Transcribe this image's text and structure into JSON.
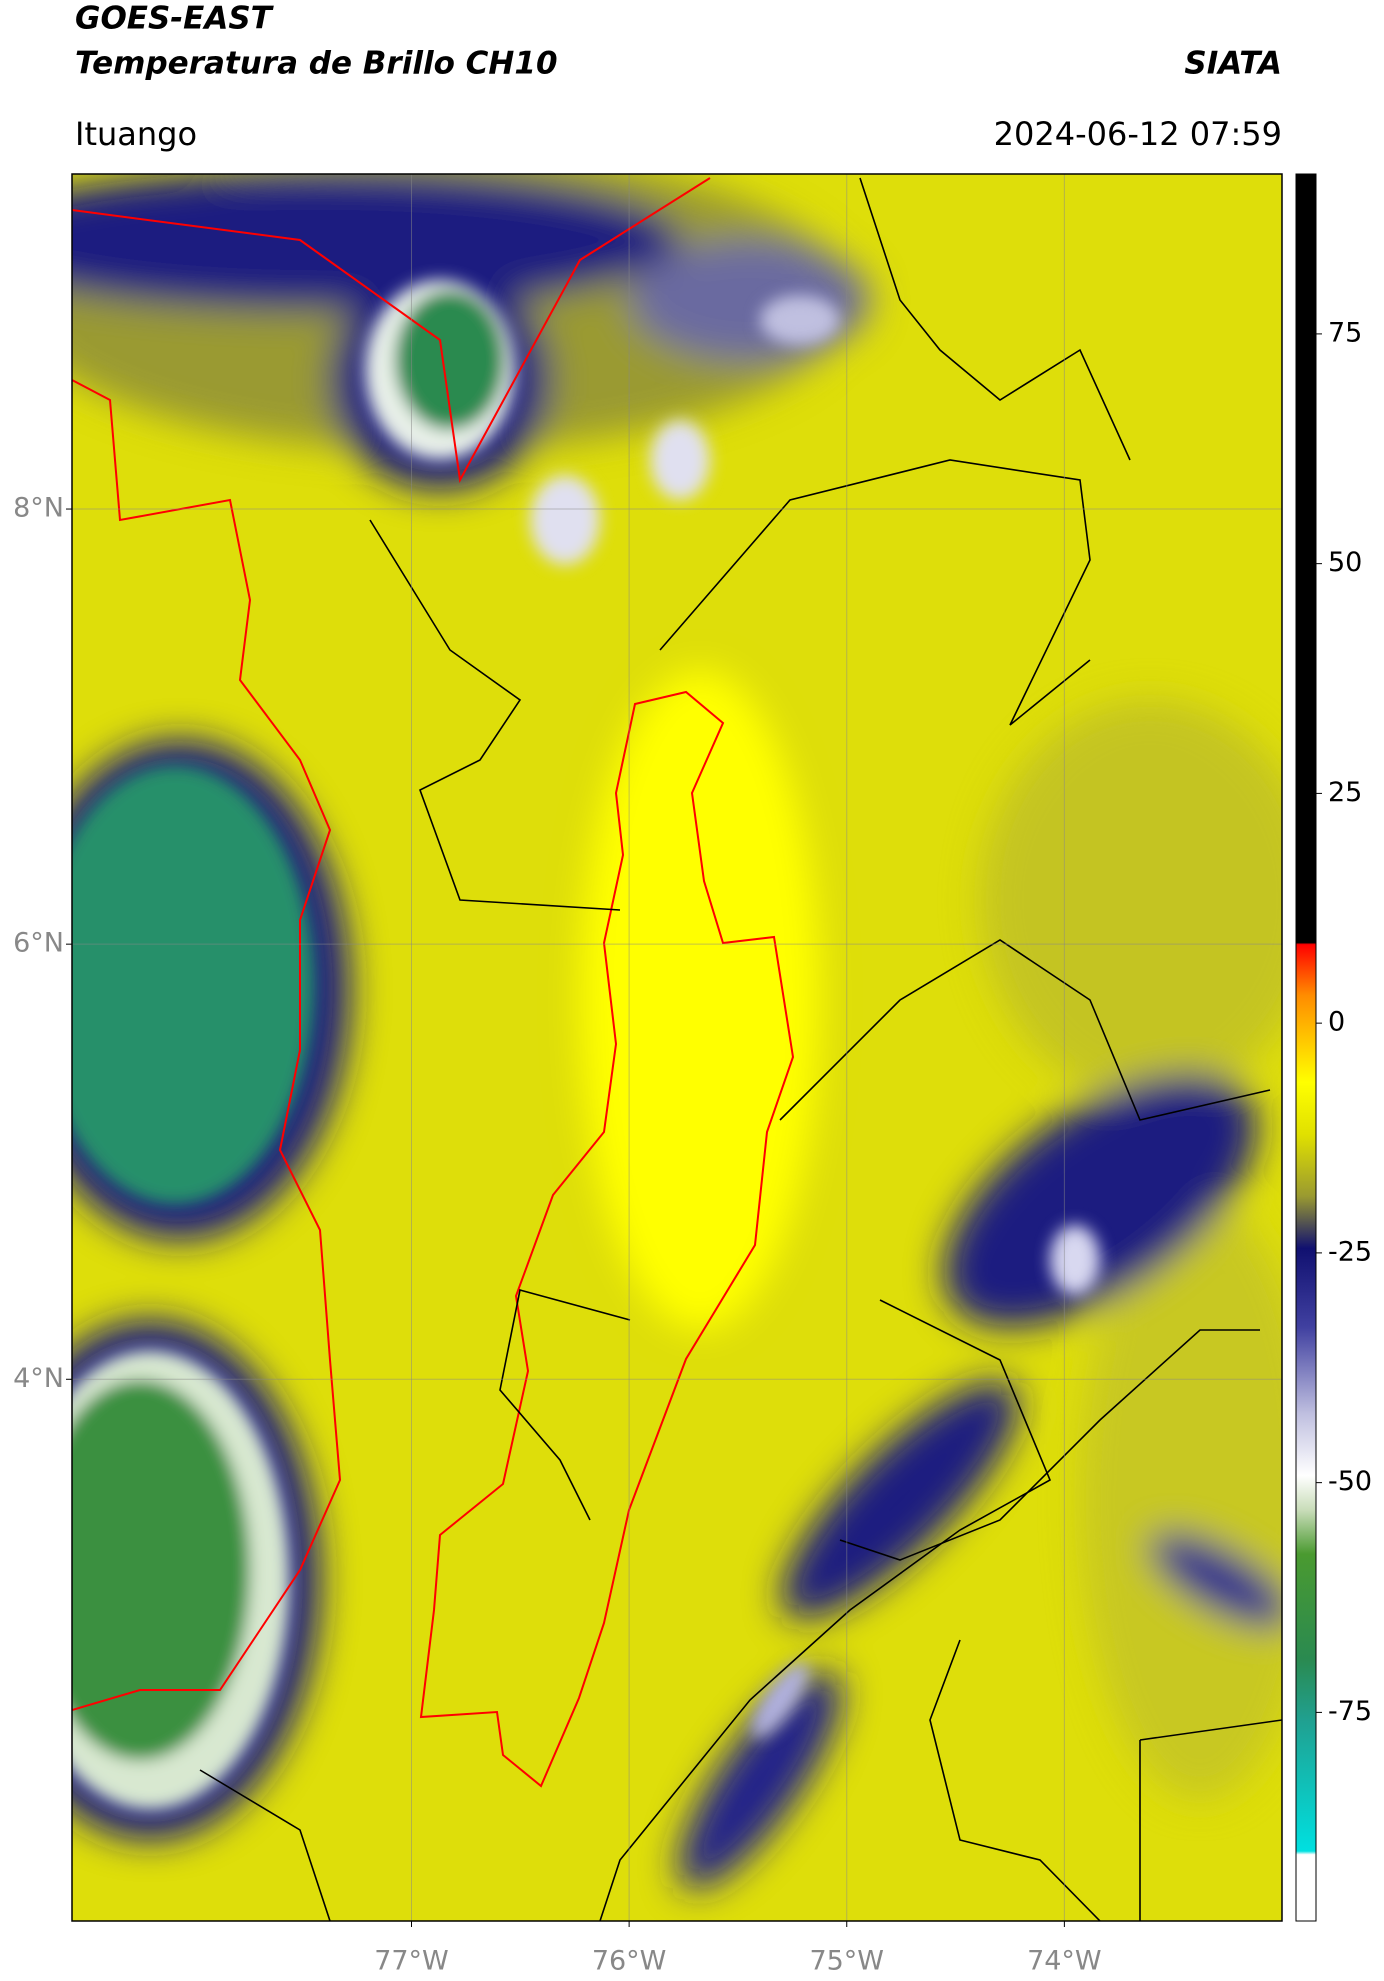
{
  "header": {
    "title": "GOES-EAST",
    "subtitle": "Temperatura de Brillo CH10",
    "brand": "SIATA",
    "location": "Ituango",
    "datetime": "2024-06-12 07:59"
  },
  "map": {
    "xlim": [
      -78.56,
      -73.0
    ],
    "ylim": [
      1.51,
      9.54
    ],
    "xticks": [
      {
        "value": -77,
        "label": "77°W"
      },
      {
        "value": -76,
        "label": "76°W"
      },
      {
        "value": -75,
        "label": "75°W"
      },
      {
        "value": -74,
        "label": "74°W"
      }
    ],
    "yticks": [
      {
        "value": 4,
        "label": "4°N"
      },
      {
        "value": 6,
        "label": "6°N"
      },
      {
        "value": 8,
        "label": "8°N"
      }
    ],
    "grid": true
  },
  "colorbar": {
    "clim": [
      -97.7,
      92.4
    ],
    "ticks": [
      75,
      50,
      25,
      0,
      -25,
      -50,
      -75
    ]
  }
}
